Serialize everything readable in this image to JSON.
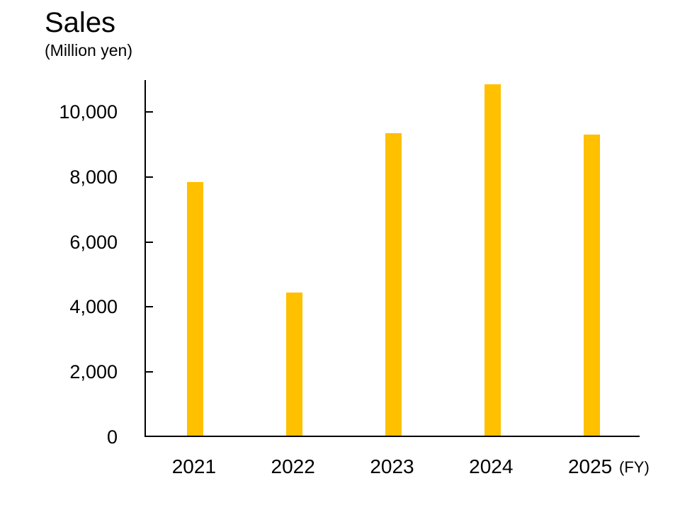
{
  "chart_data": {
    "type": "bar",
    "title": "Sales",
    "subtitle": "(Million yen)",
    "xlabel": "(FY)",
    "ylabel": "(Million yen)",
    "categories": [
      "2021",
      "2022",
      "2023",
      "2024",
      "2025"
    ],
    "series": [
      {
        "name": "Sales",
        "values": [
          7800,
          4400,
          9300,
          10800,
          9250
        ]
      }
    ],
    "ylim": [
      0,
      11000
    ],
    "y_ticks": [
      0,
      2000,
      4000,
      6000,
      8000,
      10000
    ],
    "y_tick_labels": [
      "0",
      "2,000",
      "4,000",
      "6,000",
      "8,000",
      "10,000"
    ],
    "bar_color": "#FFC000",
    "axis_color": "#000000",
    "text_color": "#000000",
    "background_color": "#FFFFFF",
    "grid": false,
    "legend": false,
    "tick_direction": "in"
  }
}
